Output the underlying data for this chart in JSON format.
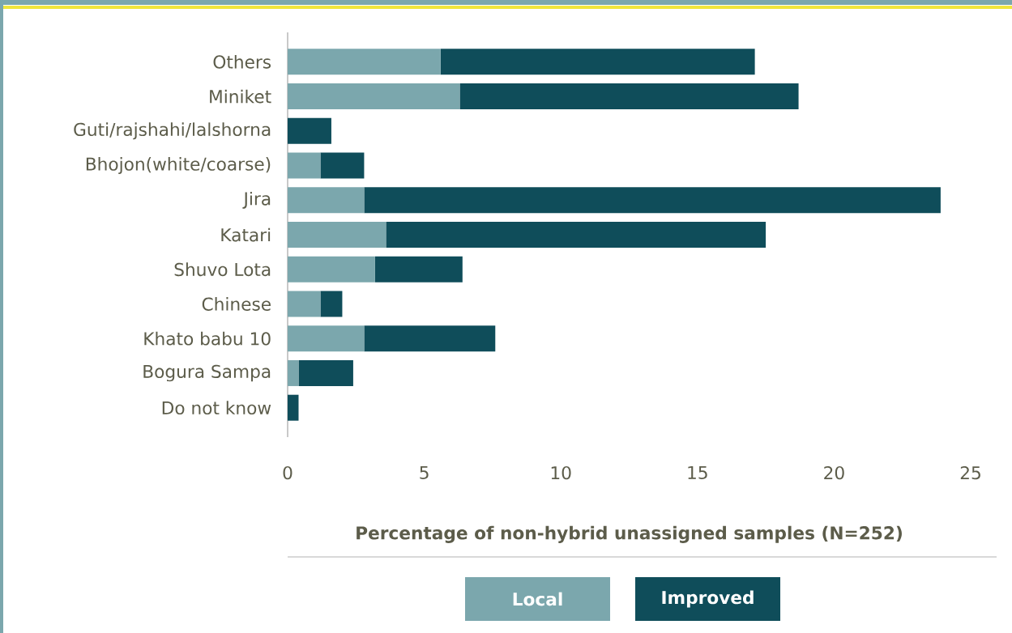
{
  "chart_data": {
    "type": "bar",
    "orientation": "horizontal",
    "stacked": true,
    "categories": [
      "Others",
      "Miniket",
      "Guti/rajshahi/lalshorna",
      "Bhojon(white/coarse)",
      "Jira",
      "Katari",
      "Shuvo Lota",
      "Chinese",
      "Khato babu 10",
      "Bogura Sampa",
      "Do not know"
    ],
    "series": [
      {
        "name": "Local",
        "color": "#7ba7ad",
        "values": [
          5.6,
          6.3,
          0,
          1.2,
          2.8,
          3.6,
          3.2,
          1.2,
          2.8,
          0.4,
          0
        ]
      },
      {
        "name": "Improved",
        "color": "#0f4d5a",
        "values": [
          11.5,
          12.4,
          1.6,
          1.6,
          21.1,
          13.9,
          3.2,
          0.8,
          4.8,
          2.0,
          0.4
        ]
      }
    ],
    "xlabel": "Percentage of non-hybrid unassigned samples (N=252)",
    "xlim": [
      0,
      25
    ],
    "xticks": [
      0,
      5,
      10,
      15,
      20,
      25
    ],
    "grid": false,
    "legend": "bottom"
  }
}
